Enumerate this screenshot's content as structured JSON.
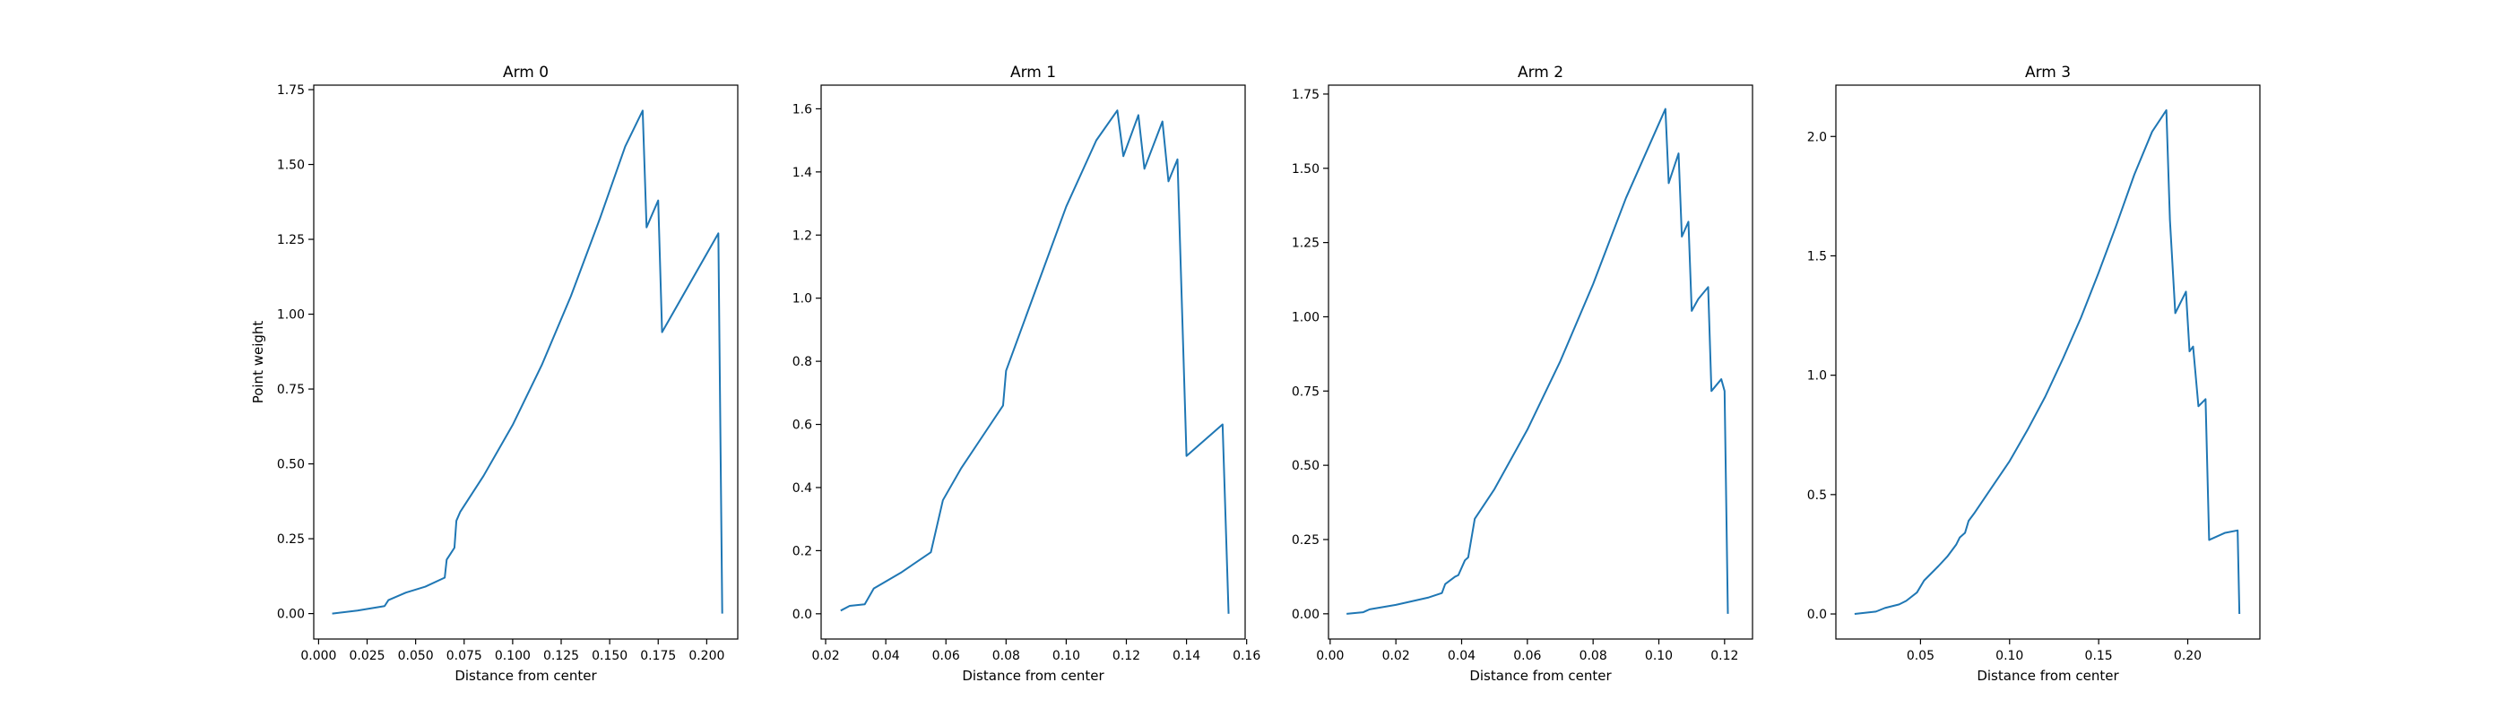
{
  "colors": {
    "line": "#1f77b4",
    "axes": "#000000",
    "background": "#ffffff"
  },
  "chart_data": [
    {
      "type": "line",
      "title": "Arm 0",
      "xlabel": "Distance from center",
      "ylabel": "Point weight",
      "xlim": [
        -0.0025,
        0.216
      ],
      "ylim": [
        -0.085,
        1.765
      ],
      "xticks": [
        0.0,
        0.025,
        0.05,
        0.075,
        0.1,
        0.125,
        0.15,
        0.175,
        0.2
      ],
      "xtick_labels": [
        "0.000",
        "0.025",
        "0.050",
        "0.075",
        "0.100",
        "0.125",
        "0.150",
        "0.175",
        "0.200"
      ],
      "yticks": [
        0.0,
        0.25,
        0.5,
        0.75,
        1.0,
        1.25,
        1.5,
        1.75
      ],
      "ytick_labels": [
        "0.00",
        "0.25",
        "0.50",
        "0.75",
        "1.00",
        "1.25",
        "1.50",
        "1.75"
      ],
      "grid": false,
      "x": [
        0.007,
        0.02,
        0.034,
        0.036,
        0.045,
        0.055,
        0.065,
        0.066,
        0.068,
        0.07,
        0.071,
        0.073,
        0.085,
        0.1,
        0.115,
        0.13,
        0.145,
        0.158,
        0.167,
        0.169,
        0.175,
        0.177,
        0.206,
        0.208
      ],
      "y": [
        0.0,
        0.01,
        0.025,
        0.045,
        0.07,
        0.09,
        0.12,
        0.18,
        0.2,
        0.22,
        0.31,
        0.34,
        0.46,
        0.63,
        0.83,
        1.06,
        1.32,
        1.56,
        1.68,
        1.29,
        1.38,
        0.94,
        1.27,
        0.0
      ]
    },
    {
      "type": "line",
      "title": "Arm 1",
      "xlabel": "Distance from center",
      "ylabel": "",
      "xlim": [
        0.0185,
        0.1595
      ],
      "ylim": [
        -0.08,
        1.675
      ],
      "xticks": [
        0.02,
        0.04,
        0.06,
        0.08,
        0.1,
        0.12,
        0.14,
        0.16
      ],
      "xtick_labels": [
        "0.02",
        "0.04",
        "0.06",
        "0.08",
        "0.10",
        "0.12",
        "0.14",
        "0.16"
      ],
      "yticks": [
        0.0,
        0.2,
        0.4,
        0.6,
        0.8,
        1.0,
        1.2,
        1.4,
        1.6
      ],
      "ytick_labels": [
        "0.0",
        "0.2",
        "0.4",
        "0.6",
        "0.8",
        "1.0",
        "1.2",
        "1.4",
        "1.6"
      ],
      "grid": false,
      "x": [
        0.025,
        0.028,
        0.033,
        0.036,
        0.045,
        0.055,
        0.059,
        0.065,
        0.072,
        0.079,
        0.08,
        0.09,
        0.1,
        0.11,
        0.117,
        0.119,
        0.124,
        0.126,
        0.132,
        0.134,
        0.137,
        0.14,
        0.152,
        0.154
      ],
      "y": [
        0.01,
        0.025,
        0.03,
        0.08,
        0.13,
        0.195,
        0.36,
        0.46,
        0.56,
        0.66,
        0.77,
        1.03,
        1.29,
        1.5,
        1.595,
        1.45,
        1.58,
        1.41,
        1.56,
        1.37,
        1.44,
        0.5,
        0.6,
        0.0
      ]
    },
    {
      "type": "line",
      "title": "Arm 2",
      "xlabel": "Distance from center",
      "ylabel": "",
      "xlim": [
        -0.0005,
        0.1285
      ],
      "ylim": [
        -0.085,
        1.78
      ],
      "xticks": [
        0.0,
        0.02,
        0.04,
        0.06,
        0.08,
        0.1,
        0.12
      ],
      "xtick_labels": [
        "0.00",
        "0.02",
        "0.04",
        "0.06",
        "0.08",
        "0.10",
        "0.12"
      ],
      "yticks": [
        0.0,
        0.25,
        0.5,
        0.75,
        1.0,
        1.25,
        1.5,
        1.75
      ],
      "ytick_labels": [
        "0.00",
        "0.25",
        "0.50",
        "0.75",
        "1.00",
        "1.25",
        "1.50",
        "1.75"
      ],
      "grid": false,
      "x": [
        0.005,
        0.01,
        0.012,
        0.02,
        0.03,
        0.034,
        0.035,
        0.038,
        0.039,
        0.041,
        0.042,
        0.044,
        0.05,
        0.06,
        0.07,
        0.08,
        0.09,
        0.1,
        0.102,
        0.103,
        0.106,
        0.107,
        0.109,
        0.11,
        0.112,
        0.115,
        0.116,
        0.119,
        0.12,
        0.121
      ],
      "y": [
        0.0,
        0.005,
        0.015,
        0.03,
        0.055,
        0.07,
        0.1,
        0.125,
        0.13,
        0.18,
        0.19,
        0.32,
        0.42,
        0.62,
        0.85,
        1.11,
        1.4,
        1.65,
        1.7,
        1.45,
        1.55,
        1.27,
        1.32,
        1.02,
        1.06,
        1.1,
        0.75,
        0.79,
        0.75,
        0.0
      ]
    },
    {
      "type": "line",
      "title": "Arm 3",
      "xlabel": "Distance from center",
      "ylabel": "",
      "xlim": [
        0.0025,
        0.2405
      ],
      "ylim": [
        -0.105,
        2.215
      ],
      "xticks": [
        0.05,
        0.1,
        0.15,
        0.2
      ],
      "xtick_labels": [
        "0.05",
        "0.10",
        "0.15",
        "0.20"
      ],
      "yticks": [
        0.0,
        0.5,
        1.0,
        1.5,
        2.0
      ],
      "ytick_labels": [
        "0.0",
        "0.5",
        "1.0",
        "1.5",
        "2.0"
      ],
      "grid": false,
      "x": [
        0.013,
        0.025,
        0.03,
        0.038,
        0.042,
        0.048,
        0.052,
        0.056,
        0.06,
        0.065,
        0.07,
        0.072,
        0.075,
        0.077,
        0.08,
        0.09,
        0.1,
        0.11,
        0.12,
        0.13,
        0.14,
        0.15,
        0.16,
        0.17,
        0.18,
        0.188,
        0.19,
        0.193,
        0.199,
        0.201,
        0.203,
        0.206,
        0.21,
        0.212,
        0.221,
        0.228,
        0.229
      ],
      "y": [
        0.0,
        0.01,
        0.025,
        0.04,
        0.055,
        0.09,
        0.14,
        0.17,
        0.2,
        0.24,
        0.29,
        0.32,
        0.34,
        0.39,
        0.42,
        0.53,
        0.64,
        0.77,
        0.91,
        1.07,
        1.24,
        1.43,
        1.63,
        1.84,
        2.02,
        2.11,
        1.65,
        1.26,
        1.35,
        1.1,
        1.12,
        0.87,
        0.9,
        0.31,
        0.34,
        0.35,
        0.0
      ]
    }
  ]
}
